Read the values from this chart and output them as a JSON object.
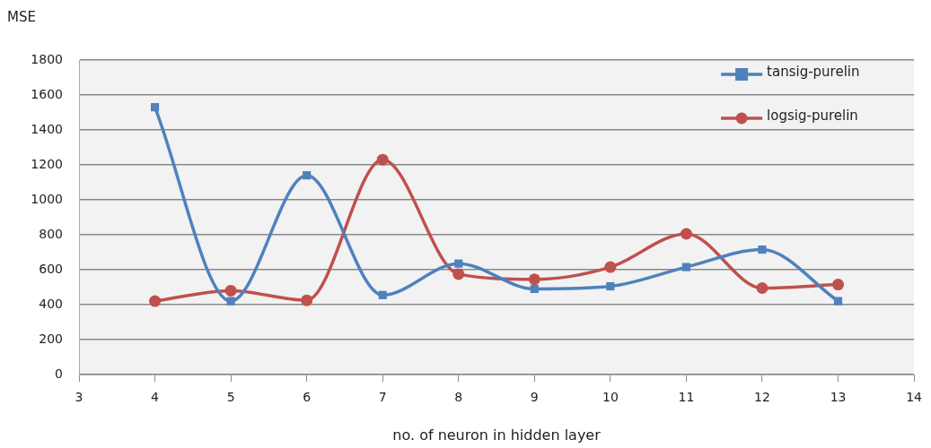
{
  "chart_data": {
    "type": "line",
    "ylabel": "MSE",
    "xlabel": "no. of neuron in hidden layer",
    "x": [
      4,
      5,
      6,
      7,
      8,
      9,
      10,
      11,
      12,
      13
    ],
    "series": [
      {
        "name": "tansig-purelin",
        "color": "#4f81bd",
        "marker": "square",
        "values": [
          1530,
          420,
          1140,
          455,
          635,
          490,
          505,
          615,
          715,
          420
        ]
      },
      {
        "name": "logsig-purelin",
        "color": "#c0504d",
        "marker": "circle",
        "values": [
          420,
          480,
          425,
          1230,
          575,
          545,
          615,
          805,
          495,
          515
        ]
      }
    ],
    "xlim": [
      3,
      14
    ],
    "xticks": [
      3,
      4,
      5,
      6,
      7,
      8,
      9,
      10,
      11,
      12,
      13,
      14
    ],
    "ylim": [
      0,
      1800
    ],
    "yticks": [
      0,
      200,
      400,
      600,
      800,
      1000,
      1200,
      1400,
      1600,
      1800
    ],
    "grid": "y",
    "legend": "top right"
  }
}
